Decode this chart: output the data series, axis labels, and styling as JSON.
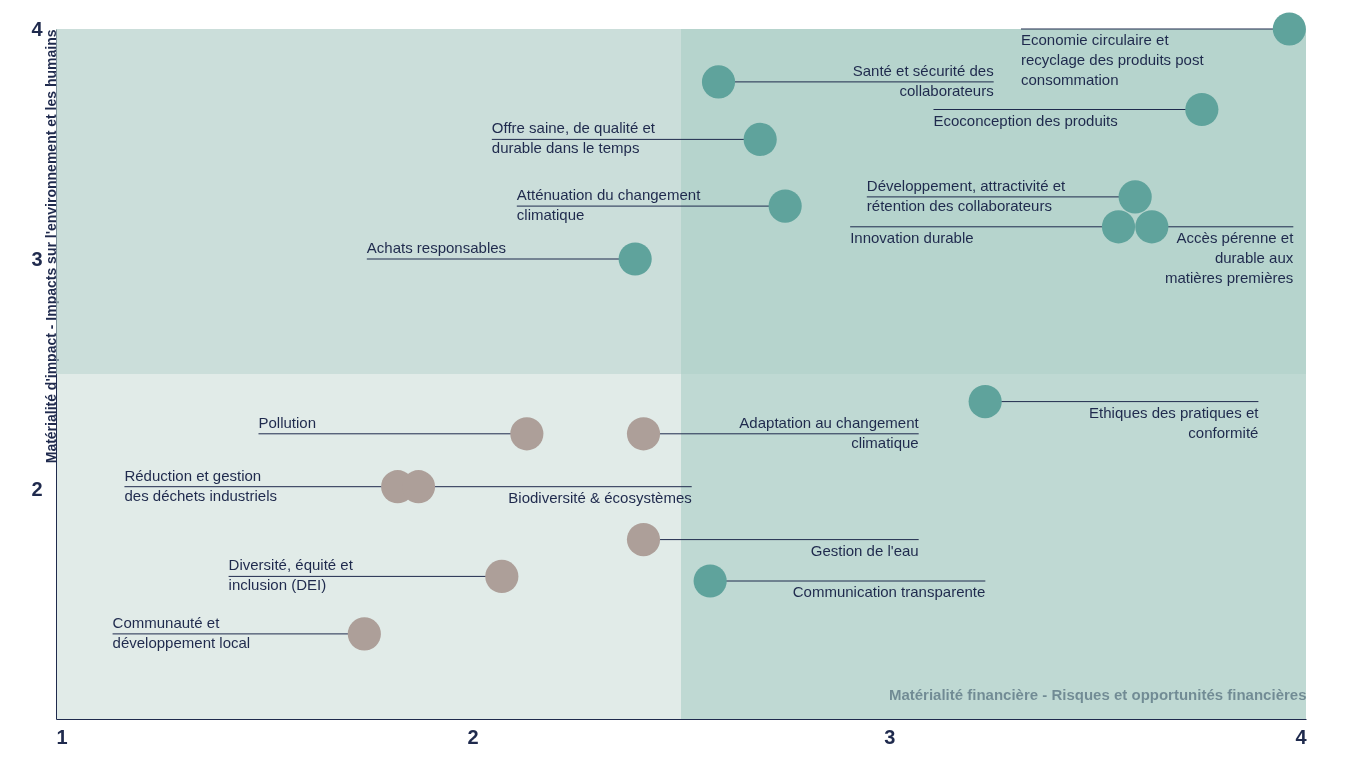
{
  "chart_data": {
    "type": "scatter",
    "xlabel": "Matérialité financière - Risques et opportunités financières",
    "ylabel": "Matérialité d'impact - Impacts sur l'environnement et les humains",
    "xlim": [
      1,
      4
    ],
    "ylim": [
      1,
      4
    ],
    "xticks": [
      1,
      2,
      3,
      4
    ],
    "yticks": [
      2,
      3,
      4
    ],
    "grid": false,
    "marker": "circle",
    "bands": [
      {
        "axis": "y",
        "from": 2.5,
        "to": 4,
        "color": "#bcd6d0"
      },
      {
        "axis": "x",
        "from": 2.5,
        "to": 4,
        "color": "#a9cdc5"
      }
    ],
    "series": [
      {
        "color": "#5fa39c",
        "x": [
          3.96,
          2.59,
          3.75,
          2.69,
          2.75,
          3.59,
          3.55,
          3.63,
          2.39,
          3.23,
          2.57
        ],
        "values": [
          4.0,
          3.77,
          3.65,
          3.52,
          3.23,
          3.27,
          3.14,
          3.14,
          3.0,
          2.38,
          1.6
        ]
      },
      {
        "color": "#ad9f99",
        "x": [
          2.13,
          2.41,
          1.82,
          1.87,
          2.41,
          2.07,
          1.74
        ],
        "values": [
          2.24,
          2.24,
          2.01,
          2.01,
          1.78,
          1.62,
          1.37
        ]
      }
    ],
    "annotations": [
      {
        "text": "Economie circulaire et recyclage des produits post consommation",
        "x": 3.96,
        "y": 4.0
      },
      {
        "text": "Santé et sécurité des collaborateurs",
        "x": 2.59,
        "y": 3.77
      },
      {
        "text": "Ecoconception des produits",
        "x": 3.75,
        "y": 3.65
      },
      {
        "text": "Offre saine, de qualité et durable dans le temps",
        "x": 2.69,
        "y": 3.52
      },
      {
        "text": "Atténuation du changement climatique",
        "x": 2.75,
        "y": 3.23
      },
      {
        "text": "Développement, attractivité et rétention des collaborateurs",
        "x": 3.59,
        "y": 3.27
      },
      {
        "text": "Innovation durable",
        "x": 3.55,
        "y": 3.14
      },
      {
        "text": "Accès pérenne et durable aux matières premières",
        "x": 3.63,
        "y": 3.14
      },
      {
        "text": "Achats responsables",
        "x": 2.39,
        "y": 3.0
      },
      {
        "text": "Ethiques des pratiques et conformité",
        "x": 3.23,
        "y": 2.38
      },
      {
        "text": "Pollution",
        "x": 2.13,
        "y": 2.24
      },
      {
        "text": "Adaptation au changement climatique",
        "x": 2.41,
        "y": 2.24
      },
      {
        "text": "Réduction et gestion des déchets industriels",
        "x": 1.82,
        "y": 2.01
      },
      {
        "text": "Biodiversité & écosystèmes",
        "x": 1.87,
        "y": 2.01
      },
      {
        "text": "Gestion de l'eau",
        "x": 2.41,
        "y": 1.78
      },
      {
        "text": "Diversité, équité et inclusion (DEI)",
        "x": 2.07,
        "y": 1.62
      },
      {
        "text": "Communication transparente",
        "x": 2.57,
        "y": 1.6
      },
      {
        "text": "Communauté et développement local",
        "x": 1.74,
        "y": 1.37
      }
    ]
  }
}
